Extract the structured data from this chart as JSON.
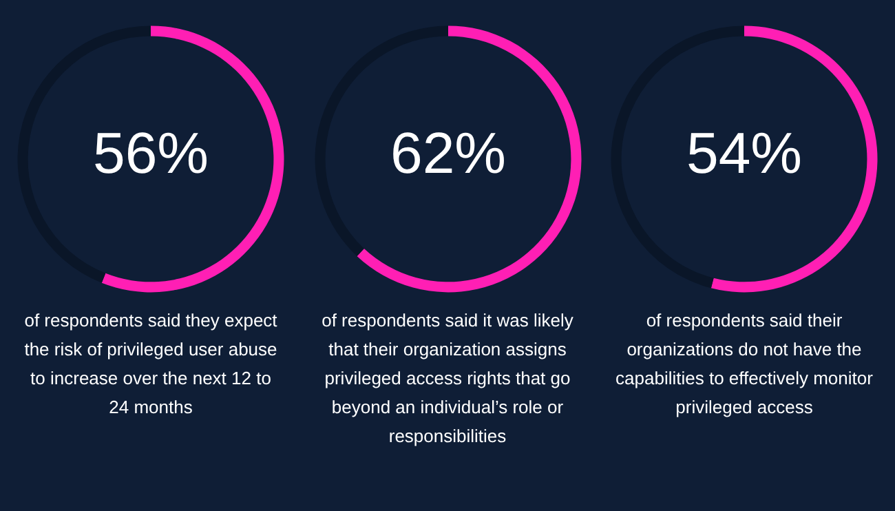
{
  "chart_data": [
    {
      "type": "donut",
      "title": "56%",
      "categories": [
        null,
        null
      ],
      "values": [
        56,
        44
      ],
      "colors": [
        "#ff1fb4",
        "#0a1628"
      ],
      "annotations": [
        "of respondents said they expect the risk of privileged user abuse to increase over the next 12 to 24 months"
      ]
    },
    {
      "type": "donut",
      "title": "62%",
      "categories": [
        null,
        null
      ],
      "values": [
        62,
        38
      ],
      "colors": [
        "#ff1fb4",
        "#0a1628"
      ],
      "annotations": [
        "of respondents said it was likely that their organization assigns privileged access rights that go beyond an individual’s role or responsibilities"
      ]
    },
    {
      "type": "donut",
      "title": "54%",
      "categories": [
        null,
        null
      ],
      "values": [
        54,
        46
      ],
      "colors": [
        "#ff1fb4",
        "#0a1628"
      ],
      "annotations": [
        "of respondents said their organizations do not have the capabilities to effectively monitor privileged access"
      ]
    }
  ]
}
